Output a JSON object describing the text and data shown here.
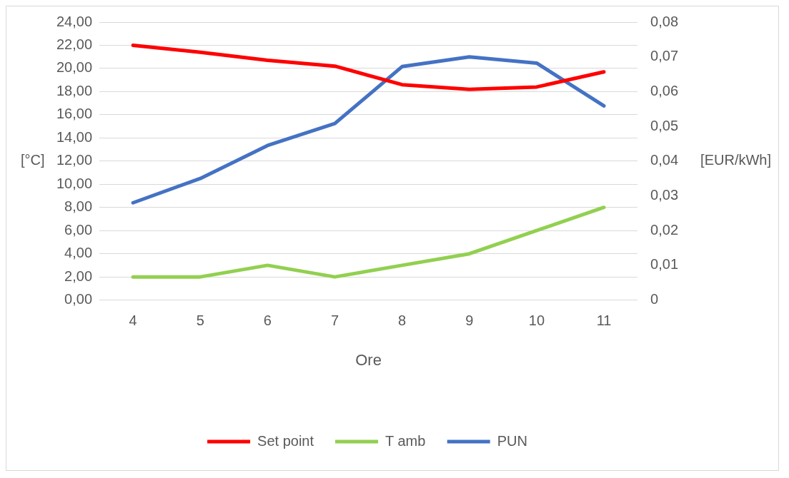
{
  "chart_data": {
    "type": "line",
    "xlabel": "Ore",
    "ylabel": "[°C]",
    "y2label": "[EUR/kWh]",
    "categories": [
      "4",
      "5",
      "6",
      "7",
      "8",
      "9",
      "10",
      "11"
    ],
    "series": [
      {
        "name": "Set point",
        "color": "#ff0000",
        "values": [
          22.0,
          21.4,
          20.7,
          20.2,
          18.6,
          18.2,
          18.4,
          19.7
        ]
      },
      {
        "name": "T amb",
        "color": "#92d050",
        "values": [
          2,
          2,
          3,
          2,
          3,
          4,
          6,
          8
        ]
      },
      {
        "name": "PUN",
        "color": "#4472c4",
        "axis": "y2",
        "values": [
          0.028,
          0.035,
          0.0445,
          0.0508,
          0.0672,
          0.07,
          0.0682,
          0.0559
        ]
      }
    ],
    "ylim": [
      0,
      24
    ],
    "yticks": [
      {
        "value": 0,
        "label": "0,00"
      },
      {
        "value": 2,
        "label": "2,00"
      },
      {
        "value": 4,
        "label": "4,00"
      },
      {
        "value": 6,
        "label": "6,00"
      },
      {
        "value": 8,
        "label": "8,00"
      },
      {
        "value": 10,
        "label": "10,00"
      },
      {
        "value": 12,
        "label": "12,00"
      },
      {
        "value": 14,
        "label": "14,00"
      },
      {
        "value": 16,
        "label": "16,00"
      },
      {
        "value": 18,
        "label": "18,00"
      },
      {
        "value": 20,
        "label": "20,00"
      },
      {
        "value": 22,
        "label": "22,00"
      },
      {
        "value": 24,
        "label": "24,00"
      }
    ],
    "y2lim": [
      0,
      0.08
    ],
    "y2ticks": [
      0,
      {
        "value": 0.01,
        "label": "0,01"
      },
      {
        "value": 0.02,
        "label": "0,02"
      },
      {
        "value": 0.03,
        "label": "0,03"
      },
      {
        "value": 0.04,
        "label": "0,04"
      },
      {
        "value": 0.05,
        "label": "0,05"
      },
      {
        "value": 0.06,
        "label": "0,06"
      },
      {
        "value": 0.07,
        "label": "0,07"
      },
      {
        "value": 0.08,
        "label": "0,08"
      }
    ],
    "grid": "y",
    "legend": "bottom",
    "marker": "none",
    "line_style": "solid"
  }
}
